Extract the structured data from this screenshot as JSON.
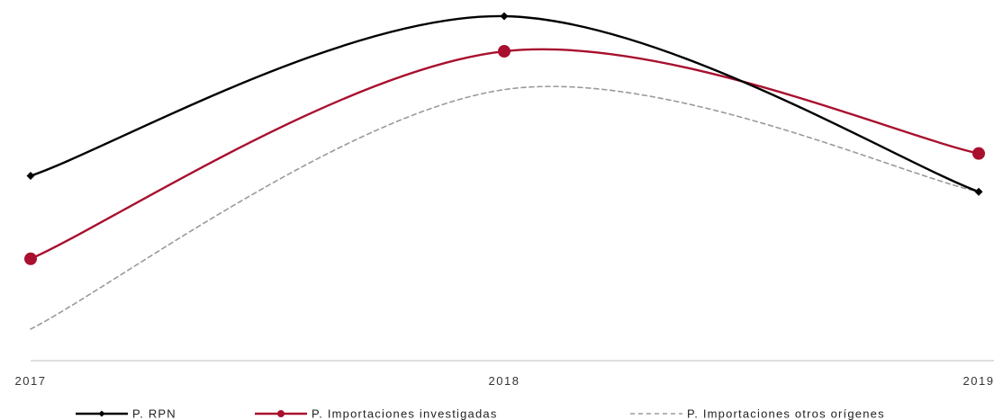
{
  "chart_data": {
    "type": "line",
    "title": "",
    "xlabel": "",
    "ylabel": "",
    "categories": [
      "2017",
      "2018",
      "2019"
    ],
    "y_axis_visible": false,
    "grid": false,
    "legend_position": "bottom",
    "series": [
      {
        "name": "P. RPN",
        "values": [
          75,
          100,
          72.5
        ],
        "color": "#000000",
        "style": "solid",
        "marker": "diamond"
      },
      {
        "name": "P. Importaciones investigadas",
        "values": [
          62,
          94.5,
          78.5
        ],
        "color": "#a8102e",
        "style": "solid",
        "marker": "circle"
      },
      {
        "name": "P. Importaciones otros orígenes",
        "values": [
          51,
          88.5,
          72.5
        ],
        "color": "#9a9a9a",
        "style": "dashed",
        "marker": "none"
      }
    ]
  }
}
